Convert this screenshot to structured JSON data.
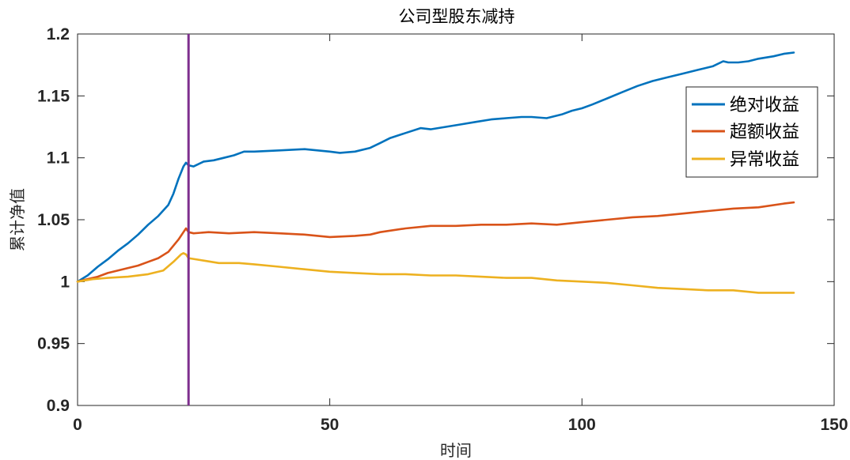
{
  "chart_data": {
    "type": "line",
    "title": "公司型股东减持",
    "xlabel": "时间",
    "ylabel": "累计净值",
    "xlim": [
      0,
      150
    ],
    "ylim": [
      0.9,
      1.2
    ],
    "x_ticks": [
      "0",
      "50",
      "100",
      "150"
    ],
    "y_ticks": [
      "0.9",
      "0.95",
      "1",
      "1.05",
      "1.1",
      "1.15",
      "1.2"
    ],
    "legend_position": "right",
    "event_line": {
      "x": 22,
      "color": "#7E2F8E"
    },
    "series": [
      {
        "name": "绝对收益",
        "color": "#0072BD",
        "points": [
          [
            0,
            1.0
          ],
          [
            2,
            1.005
          ],
          [
            4,
            1.012
          ],
          [
            6,
            1.018
          ],
          [
            8,
            1.025
          ],
          [
            10,
            1.031
          ],
          [
            12,
            1.038
          ],
          [
            14,
            1.046
          ],
          [
            16,
            1.053
          ],
          [
            18,
            1.062
          ],
          [
            19,
            1.071
          ],
          [
            20,
            1.083
          ],
          [
            21,
            1.093
          ],
          [
            21.5,
            1.096
          ],
          [
            22,
            1.094
          ],
          [
            23,
            1.093
          ],
          [
            25,
            1.097
          ],
          [
            27,
            1.098
          ],
          [
            29,
            1.1
          ],
          [
            31,
            1.102
          ],
          [
            33,
            1.105
          ],
          [
            35,
            1.105
          ],
          [
            40,
            1.106
          ],
          [
            45,
            1.107
          ],
          [
            50,
            1.105
          ],
          [
            52,
            1.104
          ],
          [
            55,
            1.105
          ],
          [
            58,
            1.108
          ],
          [
            60,
            1.112
          ],
          [
            62,
            1.116
          ],
          [
            65,
            1.12
          ],
          [
            68,
            1.124
          ],
          [
            70,
            1.123
          ],
          [
            73,
            1.125
          ],
          [
            76,
            1.127
          ],
          [
            79,
            1.129
          ],
          [
            82,
            1.131
          ],
          [
            85,
            1.132
          ],
          [
            88,
            1.133
          ],
          [
            90,
            1.133
          ],
          [
            93,
            1.132
          ],
          [
            96,
            1.135
          ],
          [
            98,
            1.138
          ],
          [
            100,
            1.14
          ],
          [
            102,
            1.143
          ],
          [
            105,
            1.148
          ],
          [
            108,
            1.153
          ],
          [
            111,
            1.158
          ],
          [
            114,
            1.162
          ],
          [
            117,
            1.165
          ],
          [
            120,
            1.168
          ],
          [
            123,
            1.171
          ],
          [
            126,
            1.174
          ],
          [
            128,
            1.178
          ],
          [
            129,
            1.177
          ],
          [
            131,
            1.177
          ],
          [
            133,
            1.178
          ],
          [
            135,
            1.18
          ],
          [
            138,
            1.182
          ],
          [
            140,
            1.184
          ],
          [
            142,
            1.185
          ]
        ]
      },
      {
        "name": "超额收益",
        "color": "#D95319",
        "points": [
          [
            0,
            1.0
          ],
          [
            2,
            1.002
          ],
          [
            4,
            1.004
          ],
          [
            6,
            1.007
          ],
          [
            8,
            1.009
          ],
          [
            10,
            1.011
          ],
          [
            12,
            1.013
          ],
          [
            14,
            1.016
          ],
          [
            16,
            1.019
          ],
          [
            18,
            1.024
          ],
          [
            20,
            1.034
          ],
          [
            21,
            1.04
          ],
          [
            21.5,
            1.043
          ],
          [
            22,
            1.04
          ],
          [
            23,
            1.039
          ],
          [
            26,
            1.04
          ],
          [
            30,
            1.039
          ],
          [
            35,
            1.04
          ],
          [
            40,
            1.039
          ],
          [
            45,
            1.038
          ],
          [
            50,
            1.036
          ],
          [
            55,
            1.037
          ],
          [
            58,
            1.038
          ],
          [
            60,
            1.04
          ],
          [
            65,
            1.043
          ],
          [
            70,
            1.045
          ],
          [
            75,
            1.045
          ],
          [
            80,
            1.046
          ],
          [
            85,
            1.046
          ],
          [
            90,
            1.047
          ],
          [
            95,
            1.046
          ],
          [
            100,
            1.048
          ],
          [
            105,
            1.05
          ],
          [
            110,
            1.052
          ],
          [
            115,
            1.053
          ],
          [
            120,
            1.055
          ],
          [
            125,
            1.057
          ],
          [
            130,
            1.059
          ],
          [
            135,
            1.06
          ],
          [
            140,
            1.063
          ],
          [
            142,
            1.064
          ]
        ]
      },
      {
        "name": "异常收益",
        "color": "#EDB120",
        "points": [
          [
            0,
            1.0
          ],
          [
            3,
            1.002
          ],
          [
            6,
            1.003
          ],
          [
            10,
            1.004
          ],
          [
            14,
            1.006
          ],
          [
            17,
            1.009
          ],
          [
            19,
            1.016
          ],
          [
            20.5,
            1.022
          ],
          [
            21,
            1.023
          ],
          [
            21.5,
            1.022
          ],
          [
            22,
            1.019
          ],
          [
            25,
            1.017
          ],
          [
            28,
            1.015
          ],
          [
            32,
            1.015
          ],
          [
            35,
            1.014
          ],
          [
            40,
            1.012
          ],
          [
            45,
            1.01
          ],
          [
            50,
            1.008
          ],
          [
            55,
            1.007
          ],
          [
            60,
            1.006
          ],
          [
            65,
            1.006
          ],
          [
            70,
            1.005
          ],
          [
            75,
            1.005
          ],
          [
            80,
            1.004
          ],
          [
            85,
            1.003
          ],
          [
            90,
            1.003
          ],
          [
            95,
            1.001
          ],
          [
            100,
            1.0
          ],
          [
            105,
            0.999
          ],
          [
            110,
            0.997
          ],
          [
            115,
            0.995
          ],
          [
            120,
            0.994
          ],
          [
            125,
            0.993
          ],
          [
            130,
            0.993
          ],
          [
            135,
            0.991
          ],
          [
            140,
            0.991
          ],
          [
            142,
            0.991
          ]
        ]
      }
    ]
  }
}
